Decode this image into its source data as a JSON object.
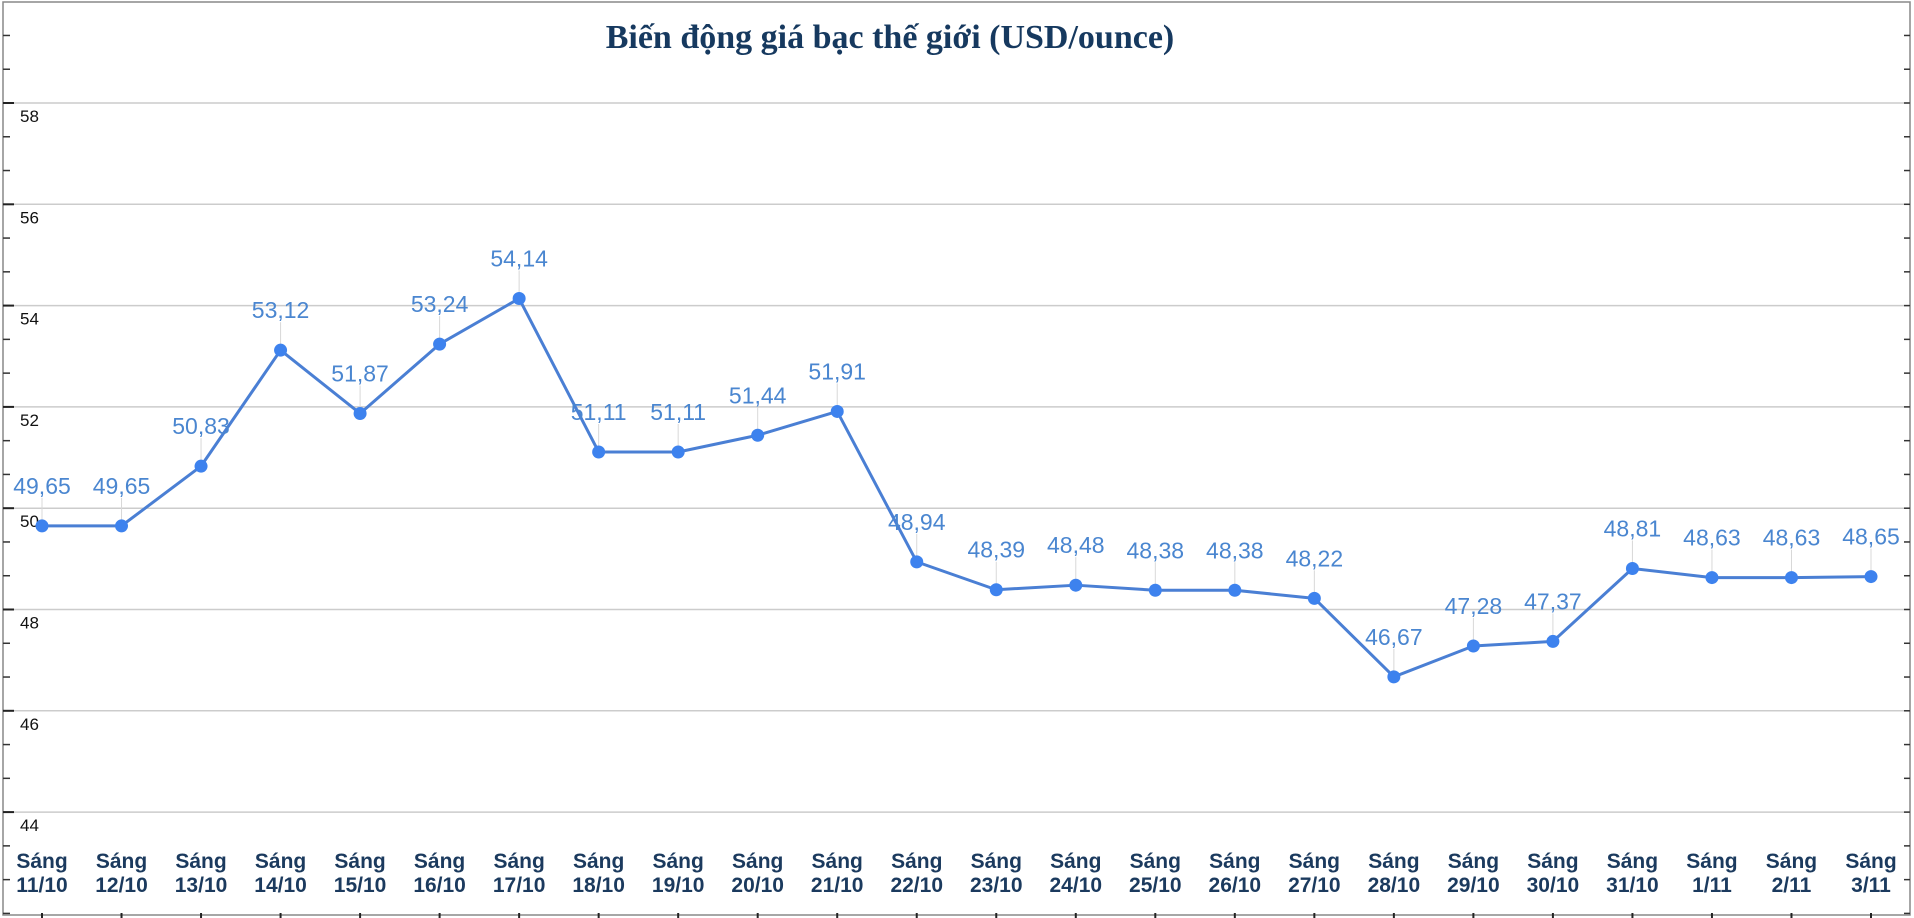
{
  "chart_data": {
    "type": "line",
    "title": "Biến động giá bạc thế giới (USD/ounce)",
    "xlabel": "",
    "ylabel": "",
    "ylim": [
      44,
      58
    ],
    "yticks": [
      44,
      46,
      48,
      50,
      52,
      54,
      56,
      58
    ],
    "grid": true,
    "categories": [
      [
        "Sáng",
        "11/10"
      ],
      [
        "Sáng",
        "12/10"
      ],
      [
        "Sáng",
        "13/10"
      ],
      [
        "Sáng",
        "14/10"
      ],
      [
        "Sáng",
        "15/10"
      ],
      [
        "Sáng",
        "16/10"
      ],
      [
        "Sáng",
        "17/10"
      ],
      [
        "Sáng",
        "18/10"
      ],
      [
        "Sáng",
        "19/10"
      ],
      [
        "Sáng",
        "20/10"
      ],
      [
        "Sáng",
        "21/10"
      ],
      [
        "Sáng",
        "22/10"
      ],
      [
        "Sáng",
        "23/10"
      ],
      [
        "Sáng",
        "24/10"
      ],
      [
        "Sáng",
        "25/10"
      ],
      [
        "Sáng",
        "26/10"
      ],
      [
        "Sáng",
        "27/10"
      ],
      [
        "Sáng",
        "28/10"
      ],
      [
        "Sáng",
        "29/10"
      ],
      [
        "Sáng",
        "30/10"
      ],
      [
        "Sáng",
        "31/10"
      ],
      [
        "Sáng",
        "1/11"
      ],
      [
        "Sáng",
        "2/11"
      ],
      [
        "Sáng",
        "3/11"
      ]
    ],
    "values": [
      49.65,
      49.65,
      50.83,
      53.12,
      51.87,
      53.24,
      54.14,
      51.11,
      51.11,
      51.44,
      51.91,
      48.94,
      48.39,
      48.48,
      48.38,
      48.38,
      48.22,
      46.67,
      47.28,
      47.37,
      48.81,
      48.63,
      48.63,
      48.65
    ],
    "data_labels": [
      "49,65",
      "49,65",
      "50,83",
      "53,12",
      "51,87",
      "53,24",
      "54,14",
      "51,11",
      "51,11",
      "51,44",
      "51,91",
      "48,94",
      "48,39",
      "48,48",
      "48,38",
      "48,38",
      "48,22",
      "46,67",
      "47,28",
      "47,37",
      "48,81",
      "48,63",
      "48,63",
      "48,65"
    ],
    "colors": {
      "line": "#4a7fd4",
      "marker": "#3d82ee",
      "data_label": "#4a86d0",
      "title": "#16395f",
      "category_label": "#1b3a5e",
      "grid": "#cccccc"
    }
  }
}
